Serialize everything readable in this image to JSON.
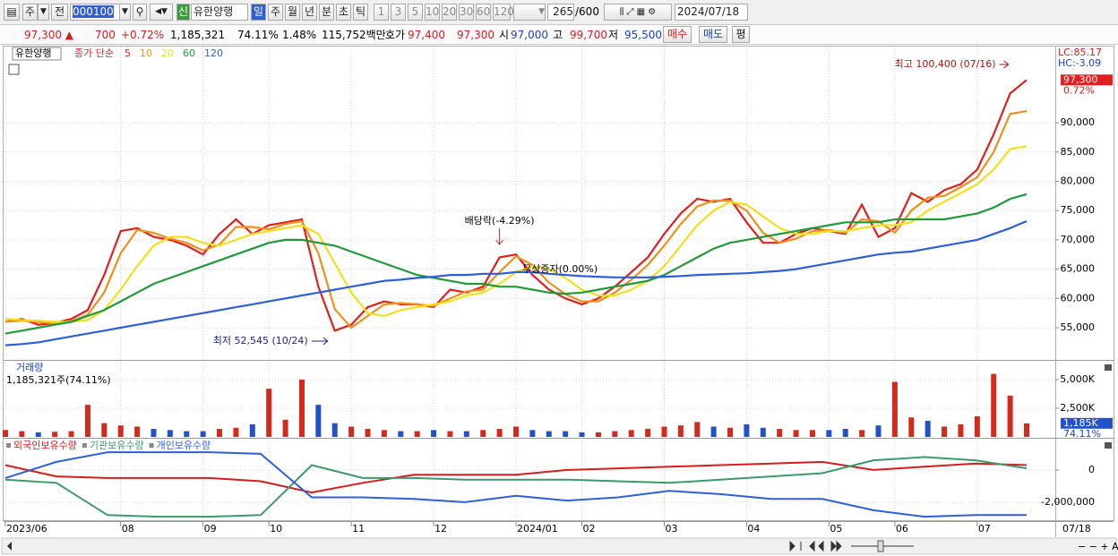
{
  "toolbar": {
    "period": "주",
    "prev": "전",
    "code": "000100",
    "badge": "신",
    "name": "유한양행",
    "units": [
      "일",
      "주",
      "월",
      "년",
      "분",
      "초",
      "틱"
    ],
    "intervals": [
      "1",
      "3",
      "5",
      "10",
      "20",
      "30",
      "60",
      "120"
    ],
    "count": "265",
    "max": "/600",
    "date": "2024/07/18"
  },
  "quote": {
    "price": "97,300 ▲",
    "change": "700",
    "rate": "+0.72%",
    "volume": "1,185,321",
    "vol_ratio": "74.11%",
    "turnover": "1.48%",
    "amount": "115,752백만",
    "ask_label": "호가",
    "ask": "97,400",
    "bid": "97,300",
    "open_label": "시",
    "open": "97,000",
    "high_label": "고",
    "high": "99,700",
    "low_label": "저",
    "low": "95,500",
    "buy": "매수",
    "sell": "매도",
    "avg": "평"
  },
  "chart_data": [
    {
      "type": "line",
      "name": "유한양행",
      "legend_title": "종가 단순",
      "categories": [
        "2023/06",
        null,
        null,
        null,
        null,
        null,
        null,
        "08",
        null,
        null,
        null,
        null,
        "09",
        null,
        null,
        null,
        "10",
        null,
        null,
        null,
        null,
        "11",
        null,
        null,
        null,
        null,
        "12",
        null,
        null,
        null,
        null,
        "2024/01",
        null,
        null,
        null,
        "02",
        null,
        null,
        null,
        null,
        "03",
        null,
        null,
        null,
        null,
        "04",
        null,
        null,
        null,
        null,
        "05",
        null,
        null,
        null,
        "06",
        null,
        null,
        null,
        null,
        "07",
        null,
        null,
        null
      ],
      "last_date": "07/18",
      "series": [
        {
          "name": "5",
          "color": "#e0201c",
          "values": [
            56000,
            56500,
            55500,
            55800,
            56500,
            58000,
            64000,
            71500,
            72000,
            70500,
            70000,
            69000,
            67500,
            71000,
            73500,
            71000,
            72500,
            73000,
            73500,
            62000,
            54500,
            55500,
            58500,
            59500,
            59000,
            59000,
            58500,
            61500,
            61000,
            62000,
            67000,
            67500,
            64000,
            61500,
            60000,
            59000,
            60000,
            62000,
            64500,
            67000,
            71000,
            74500,
            77000,
            76500,
            77000,
            73000,
            69500,
            69500,
            71000,
            72000,
            71500,
            71000,
            76000,
            70500,
            72000,
            78000,
            76500,
            78500,
            79500,
            82000,
            88000,
            95000,
            97300
          ]
        },
        {
          "name": "10",
          "color": "#f0901c",
          "values": [
            56000,
            56200,
            56000,
            55700,
            56100,
            57200,
            61000,
            67700,
            71700,
            71200,
            70200,
            69500,
            68200,
            69200,
            72200,
            72200,
            71800,
            72700,
            73200,
            67700,
            58200,
            55000,
            57000,
            59000,
            59200,
            59000,
            58700,
            60000,
            61200,
            61500,
            64500,
            67200,
            65700,
            62700,
            60700,
            59500,
            59500,
            61000,
            63200,
            65700,
            69000,
            72700,
            75700,
            76700,
            76700,
            75000,
            71200,
            69500,
            70200,
            71500,
            71700,
            71200,
            73500,
            73200,
            71200,
            75000,
            77200,
            77500,
            79000,
            80700,
            85000,
            91500,
            92000
          ]
        },
        {
          "name": "20",
          "color": "#f2e01c",
          "values": [
            56500,
            56300,
            56200,
            56000,
            56000,
            56300,
            58000,
            61500,
            65500,
            69000,
            70500,
            70500,
            69500,
            69000,
            70000,
            71000,
            71500,
            72000,
            72500,
            71000,
            66000,
            61000,
            57500,
            57000,
            58000,
            58500,
            59000,
            59500,
            60500,
            61000,
            62500,
            64500,
            65500,
            65000,
            63500,
            61500,
            60500,
            60500,
            61500,
            63000,
            65500,
            69000,
            72500,
            75000,
            76500,
            76000,
            74000,
            72000,
            71000,
            71000,
            71500,
            71500,
            72000,
            72500,
            72500,
            73000,
            75000,
            76500,
            78000,
            79500,
            82000,
            85500,
            86000
          ]
        },
        {
          "name": "60",
          "color": "#1f9a3a",
          "values": [
            54000,
            54500,
            55000,
            55500,
            56000,
            57000,
            58000,
            59500,
            61000,
            62500,
            63500,
            64500,
            65500,
            66500,
            67500,
            68500,
            69500,
            70000,
            70000,
            69500,
            69000,
            68000,
            67000,
            66000,
            65000,
            64000,
            63500,
            63000,
            62500,
            62500,
            62000,
            62000,
            61500,
            61000,
            60800,
            61000,
            61500,
            62000,
            62500,
            63000,
            64000,
            65500,
            67000,
            68500,
            69500,
            70000,
            70500,
            71000,
            71500,
            72000,
            72500,
            73000,
            73000,
            73000,
            73500,
            73500,
            73500,
            73500,
            74000,
            74500,
            75500,
            77000,
            77800
          ]
        },
        {
          "name": "120",
          "color": "#2e5fd6",
          "values": [
            52000,
            52200,
            52500,
            53000,
            53500,
            54000,
            54500,
            55000,
            55500,
            56000,
            56500,
            57000,
            57500,
            58000,
            58500,
            59000,
            59500,
            60000,
            60500,
            61000,
            61500,
            62000,
            62500,
            63000,
            63200,
            63500,
            63700,
            64000,
            64000,
            64200,
            64200,
            64500,
            64500,
            64200,
            64000,
            63800,
            63700,
            63600,
            63600,
            63600,
            63700,
            63800,
            64000,
            64100,
            64200,
            64300,
            64500,
            64700,
            65000,
            65500,
            66000,
            66500,
            67000,
            67500,
            67800,
            68000,
            68500,
            69000,
            69500,
            70000,
            71000,
            72000,
            73200
          ]
        }
      ],
      "ylim": [
        49500,
        103000
      ],
      "yticks": [
        {
          "value": 55000,
          "label": "55,000"
        },
        {
          "value": 60000,
          "label": "60,000"
        },
        {
          "value": 65000,
          "label": "65,000"
        },
        {
          "value": 70000,
          "label": "70,000"
        },
        {
          "value": 75000,
          "label": "75,000"
        },
        {
          "value": 80000,
          "label": "80,000"
        },
        {
          "value": 85000,
          "label": "85,000"
        },
        {
          "value": 90000,
          "label": "90,000"
        }
      ],
      "grid": true,
      "last_price": {
        "value": 97300,
        "label": "97,300"
      },
      "last_rate": "0.72%",
      "lc": "LC:85.17",
      "hc": "HC:-3.09",
      "annotations": {
        "high": "최고 100,400 (07/16)",
        "low": "최저 52,545 (10/24)",
        "dividend": "배당락(-4.29%)",
        "bonus": "무상증자(0.00%)"
      }
    },
    {
      "type": "bar",
      "title": "거래량",
      "subtitle": "1,185,321주(74.11%)",
      "up_color": "#d42a1e",
      "down_color": "#2352c8",
      "values": [
        600,
        500,
        400,
        450,
        500,
        2800,
        1200,
        1000,
        900,
        700,
        600,
        500,
        500,
        700,
        800,
        1100,
        4200,
        1500,
        5000,
        2800,
        1200,
        900,
        700,
        600,
        500,
        500,
        600,
        500,
        500,
        600,
        700,
        900,
        600,
        500,
        500,
        400,
        400,
        500,
        600,
        700,
        900,
        1000,
        1300,
        900,
        800,
        1100,
        800,
        700,
        600,
        600,
        600,
        700,
        600,
        1000,
        4800,
        1700,
        1400,
        900,
        1100,
        1800,
        5500,
        3600,
        1185
      ],
      "ylim": [
        0,
        6480
      ],
      "yticks": [
        {
          "value": 2500,
          "label": "2,500K"
        },
        {
          "value": 5000,
          "label": "5,000K"
        }
      ],
      "last_value": {
        "value": 1185,
        "label": "1,185K"
      },
      "last_ratio": "74.11%"
    },
    {
      "type": "line",
      "series": [
        {
          "name": "외국인보유수량",
          "color": "#d81b1b",
          "values": [
            300000,
            -400000,
            -500000,
            -500000,
            -500000,
            -700000,
            -1400000,
            -800000,
            -300000,
            -300000,
            -300000,
            0,
            100000,
            200000,
            300000,
            400000,
            500000,
            0,
            200000,
            400000,
            300000
          ]
        },
        {
          "name": "기관보유수량",
          "color": "#3a9a6a",
          "values": [
            -600000,
            -800000,
            -2800000,
            -2900000,
            -2900000,
            -2800000,
            300000,
            -500000,
            -500000,
            -600000,
            -600000,
            -600000,
            -700000,
            -800000,
            -600000,
            -400000,
            -200000,
            600000,
            800000,
            600000,
            100000
          ]
        },
        {
          "name": "개인보유수량",
          "color": "#2e5fd6",
          "values": [
            -500000,
            500000,
            1100000,
            1100000,
            1100000,
            1000000,
            -1700000,
            -1700000,
            -1800000,
            -2000000,
            -1600000,
            -1900000,
            -1700000,
            -1300000,
            -1500000,
            -1800000,
            -1800000,
            -2500000,
            -2900000,
            -2800000,
            -2800000
          ]
        }
      ],
      "ylim": [
        -3170000,
        1830000
      ],
      "yticks": [
        0,
        {
          "value": -2000000,
          "label": "-2,000,000"
        }
      ]
    }
  ]
}
